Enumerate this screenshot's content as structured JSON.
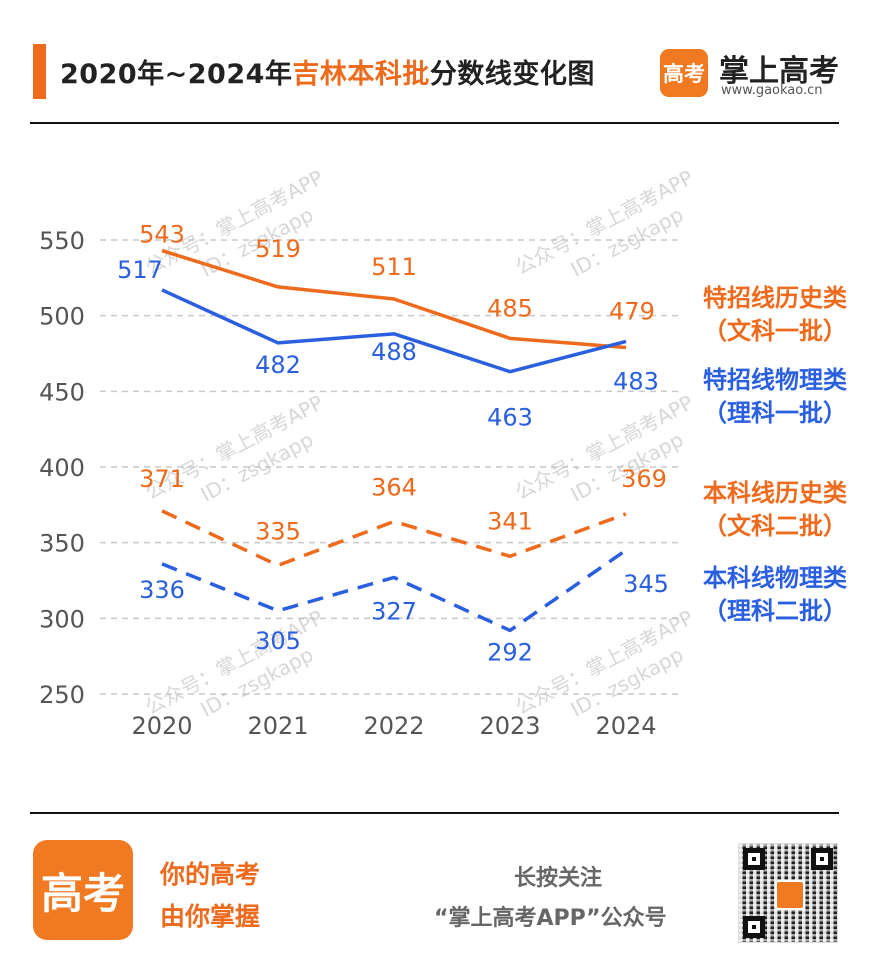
{
  "header": {
    "title_prefix": "2020年~2024年",
    "title_highlight": "吉林本科批",
    "title_suffix": "分数线变化图",
    "brand_logo_text": "高考",
    "brand_name": "掌上高考",
    "brand_url": "www.gaokao.cn"
  },
  "watermark": {
    "line1": "公众号：掌上高考APP",
    "line2": "ID：zsgkapp"
  },
  "chart_data": {
    "type": "line",
    "categories": [
      "2020",
      "2021",
      "2022",
      "2023",
      "2024"
    ],
    "ylim": [
      250,
      550
    ],
    "yticks": [
      "250",
      "300",
      "350",
      "400",
      "450",
      "500",
      "550"
    ],
    "grid": true,
    "legend": "right",
    "series": [
      {
        "name": "特招线历史类",
        "sub": "（文科一批）",
        "color": "#ee6a1c",
        "dash": false,
        "values": [
          543,
          519,
          511,
          485,
          479
        ]
      },
      {
        "name": "特招线物理类",
        "sub": "（理科一批）",
        "color": "#2a5fe0",
        "dash": false,
        "values": [
          517,
          482,
          488,
          463,
          483
        ]
      },
      {
        "name": "本科线历史类",
        "sub": "（文科二批）",
        "color": "#ee6a1c",
        "dash": true,
        "values": [
          371,
          335,
          364,
          341,
          369
        ]
      },
      {
        "name": "本科线物理类",
        "sub": "（理科二批）",
        "color": "#2a5fe0",
        "dash": true,
        "values": [
          336,
          305,
          327,
          292,
          345
        ]
      }
    ]
  },
  "footer": {
    "logo_text": "高考",
    "slogan_line1": "你的高考",
    "slogan_line2": "由你掌握",
    "follow_line1": "长按关注",
    "follow_line2": "“掌上高考APP”公众号"
  }
}
